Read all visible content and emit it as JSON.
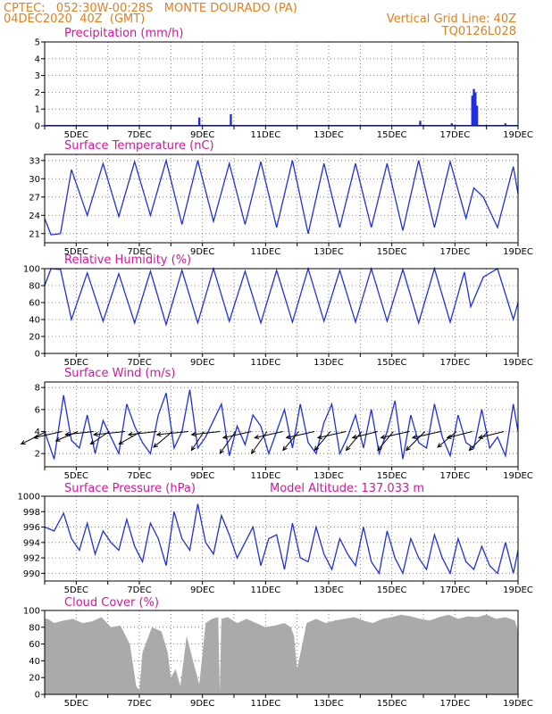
{
  "header": {
    "line1_left": "CPTEC:   052:30W-00:28S   MONTE DOURADO (PA)",
    "line2_left": "04DEC2020  40Z  (GMT)",
    "line2_right": "Vertical Grid Line: 40Z",
    "line3_right": "TQ0126L028"
  },
  "x_axis": {
    "tick_labels": [
      "5DEC",
      "7DEC",
      "9DEC",
      "11DEC",
      "13DEC",
      "15DEC",
      "17DEC",
      "19DEC"
    ]
  },
  "colors": {
    "header": "#e08020",
    "titles": "#d0189a",
    "series_line": "#2030e0",
    "wind_arrows": "#000000",
    "cloud_fill": "#aaaaaa",
    "grid": "#666666"
  },
  "panels": {
    "precip": {
      "title": "Precipitation (mm/h)",
      "yticks": [
        "0",
        "1",
        "2",
        "3",
        "4",
        "5"
      ]
    },
    "temp": {
      "title": "Surface Temperature (nC)",
      "yticks": [
        "21",
        "24",
        "27",
        "30",
        "33"
      ]
    },
    "rh": {
      "title": "Relative Humidity (%)",
      "yticks": [
        "0",
        "20",
        "40",
        "60",
        "80",
        "100"
      ]
    },
    "wind": {
      "title": "Surface Wind (m/s)",
      "yticks": [
        "2",
        "4",
        "6",
        "8"
      ]
    },
    "pressure": {
      "title": "Surface Pressure (hPa)",
      "extra": "Model Altitude: 137.033 m",
      "yticks": [
        "990",
        "992",
        "994",
        "996",
        "998",
        "1000"
      ]
    },
    "cloud": {
      "title": "Cloud Cover (%)",
      "yticks": [
        "0",
        "20",
        "40",
        "60",
        "80",
        "100"
      ]
    }
  },
  "chart_data": [
    {
      "type": "bar",
      "title": "Precipitation (mm/h)",
      "ylim": [
        0,
        5
      ],
      "xrange_days": [
        4.0,
        19.0
      ],
      "x": [
        6.0,
        8.9,
        9.9,
        15.9,
        16.9,
        17.55,
        17.6,
        17.65,
        17.7,
        18.6
      ],
      "values": [
        0.05,
        0.5,
        0.7,
        0.3,
        0.15,
        1.8,
        2.2,
        2.0,
        1.2,
        0.15
      ]
    },
    {
      "type": "line",
      "title": "Surface Temperature (nC)",
      "ylim": [
        19.5,
        34
      ],
      "xrange_days": [
        4.0,
        19.0
      ],
      "x": [
        4.0,
        4.2,
        4.5,
        4.85,
        5.35,
        5.85,
        6.35,
        6.85,
        7.35,
        7.85,
        8.35,
        8.85,
        9.35,
        9.85,
        10.35,
        10.85,
        11.35,
        11.85,
        12.35,
        12.85,
        13.35,
        13.85,
        14.35,
        14.85,
        15.35,
        15.85,
        16.35,
        16.85,
        17.35,
        17.6,
        17.9,
        18.35,
        18.85,
        19.0
      ],
      "y": [
        23.5,
        20.8,
        21.0,
        31.5,
        24.0,
        32.5,
        23.8,
        32.8,
        24.0,
        33.0,
        22.5,
        33.0,
        23.0,
        32.5,
        22.5,
        32.8,
        22.0,
        33.0,
        21.0,
        32.5,
        22.0,
        32.5,
        22.0,
        32.5,
        21.5,
        33.0,
        22.0,
        32.8,
        23.5,
        28.5,
        27.0,
        22.0,
        32.0,
        27.5
      ]
    },
    {
      "type": "line",
      "title": "Relative Humidity (%)",
      "ylim": [
        0,
        100
      ],
      "xrange_days": [
        4.0,
        19.0
      ],
      "x": [
        4.0,
        4.2,
        4.5,
        4.85,
        5.35,
        5.85,
        6.35,
        6.85,
        7.35,
        7.85,
        8.35,
        8.85,
        9.35,
        9.85,
        10.35,
        10.85,
        11.35,
        11.85,
        12.35,
        12.85,
        13.35,
        13.85,
        14.35,
        14.85,
        15.35,
        15.85,
        16.35,
        16.85,
        17.3,
        17.5,
        17.9,
        18.35,
        18.85,
        19.0
      ],
      "y": [
        80,
        100,
        99,
        40,
        95,
        38,
        94,
        36,
        97,
        34,
        98,
        36,
        100,
        38,
        97,
        36,
        98,
        37,
        100,
        38,
        98,
        37,
        100,
        38,
        99,
        36,
        100,
        37,
        96,
        55,
        90,
        100,
        40,
        60
      ]
    },
    {
      "type": "line",
      "title": "Surface Wind (m/s)",
      "ylim": [
        0.8,
        8.5
      ],
      "xrange_days": [
        4.0,
        19.0
      ],
      "x": [
        4.0,
        4.3,
        4.6,
        4.85,
        5.1,
        5.35,
        5.6,
        5.85,
        6.1,
        6.35,
        6.6,
        6.85,
        7.1,
        7.35,
        7.6,
        7.85,
        8.1,
        8.35,
        8.6,
        8.85,
        9.1,
        9.35,
        9.6,
        9.85,
        10.1,
        10.35,
        10.6,
        10.85,
        11.1,
        11.35,
        11.6,
        11.85,
        12.1,
        12.35,
        12.6,
        12.85,
        13.1,
        13.35,
        13.6,
        13.85,
        14.1,
        14.35,
        14.6,
        14.85,
        15.1,
        15.35,
        15.6,
        15.85,
        16.1,
        16.35,
        16.6,
        16.85,
        17.1,
        17.35,
        17.6,
        17.85,
        18.1,
        18.35,
        18.6,
        18.85,
        19.0
      ],
      "y": [
        4.0,
        1.5,
        7.3,
        3.2,
        2.5,
        5.5,
        2.0,
        5.0,
        3.5,
        2.0,
        6.5,
        4.5,
        3.0,
        2.0,
        5.5,
        7.5,
        2.5,
        4.0,
        7.8,
        2.5,
        3.5,
        5.0,
        6.5,
        1.8,
        4.5,
        2.8,
        5.5,
        4.5,
        2.0,
        4.0,
        6.0,
        2.5,
        6.5,
        3.0,
        2.0,
        4.8,
        6.5,
        2.0,
        3.5,
        5.5,
        2.5,
        6.0,
        2.0,
        4.0,
        6.8,
        1.5,
        5.5,
        3.0,
        2.5,
        6.5,
        3.5,
        1.8,
        5.5,
        3.0,
        2.5,
        6.0,
        2.5,
        3.5,
        1.8,
        6.5,
        4.0
      ]
    },
    {
      "type": "line",
      "title": "Surface Pressure (hPa)",
      "ylim": [
        989,
        1000
      ],
      "xrange_days": [
        4.0,
        19.0
      ],
      "x": [
        4.0,
        4.3,
        4.6,
        4.85,
        5.1,
        5.35,
        5.6,
        5.85,
        6.1,
        6.35,
        6.6,
        6.85,
        7.1,
        7.35,
        7.6,
        7.85,
        8.1,
        8.35,
        8.6,
        8.85,
        9.1,
        9.35,
        9.6,
        9.85,
        10.1,
        10.35,
        10.6,
        10.85,
        11.1,
        11.35,
        11.6,
        11.85,
        12.1,
        12.35,
        12.6,
        12.85,
        13.1,
        13.35,
        13.6,
        13.85,
        14.1,
        14.35,
        14.6,
        14.85,
        15.1,
        15.35,
        15.6,
        15.85,
        16.1,
        16.35,
        16.6,
        16.85,
        17.1,
        17.35,
        17.6,
        17.85,
        18.1,
        18.35,
        18.6,
        18.85,
        19.0
      ],
      "y": [
        996,
        995.5,
        997.8,
        994.5,
        993.0,
        996.5,
        992.5,
        995.5,
        994.0,
        993.0,
        997.0,
        993.5,
        991.5,
        996.5,
        994.5,
        991.0,
        998.0,
        994.5,
        993.0,
        999.0,
        994.0,
        992.5,
        997.5,
        995.0,
        992.0,
        994.0,
        996.0,
        991.0,
        994.5,
        995.0,
        990.5,
        996.5,
        992.0,
        991.5,
        996.0,
        992.5,
        990.5,
        994.5,
        992.5,
        991.0,
        996.0,
        991.5,
        990.0,
        995.5,
        992.0,
        990.0,
        994.5,
        992.0,
        990.5,
        995.0,
        992.0,
        990.0,
        994.5,
        991.5,
        990.5,
        993.5,
        991.0,
        990.0,
        994.0,
        990.0,
        993.0
      ]
    },
    {
      "type": "area",
      "title": "Cloud Cover (%)",
      "ylim": [
        0,
        100
      ],
      "xrange_days": [
        4.0,
        19.0
      ],
      "x": [
        4.0,
        4.1,
        4.3,
        4.6,
        4.9,
        5.2,
        5.5,
        5.8,
        6.1,
        6.4,
        6.7,
        6.9,
        7.0,
        7.1,
        7.4,
        7.7,
        7.9,
        8.0,
        8.15,
        8.3,
        8.5,
        8.7,
        8.9,
        9.1,
        9.3,
        9.5,
        9.55,
        9.6,
        9.8,
        10.1,
        10.4,
        10.7,
        11.0,
        11.3,
        11.6,
        11.8,
        11.9,
        12.0,
        12.3,
        12.6,
        12.9,
        13.2,
        13.5,
        13.8,
        14.1,
        14.4,
        14.7,
        15.0,
        15.3,
        15.6,
        15.9,
        16.2,
        16.5,
        16.8,
        17.1,
        17.4,
        17.7,
        18.0,
        18.3,
        18.6,
        18.9,
        19.0
      ],
      "y": [
        90,
        90,
        85,
        88,
        90,
        85,
        87,
        92,
        80,
        82,
        60,
        10,
        5,
        50,
        80,
        75,
        50,
        20,
        30,
        10,
        70,
        40,
        12,
        85,
        90,
        92,
        2,
        90,
        92,
        85,
        90,
        85,
        80,
        82,
        85,
        80,
        70,
        30,
        85,
        90,
        85,
        88,
        90,
        92,
        88,
        85,
        90,
        92,
        95,
        93,
        90,
        88,
        92,
        95,
        90,
        93,
        92,
        95,
        90,
        92,
        88,
        75
      ]
    },
    {
      "type": "scatter",
      "title": "Surface Wind (m/s) vectors",
      "xrange_days": [
        4.0,
        19.0
      ],
      "x": [
        4.05,
        4.55,
        5.05,
        5.55,
        6.05,
        6.55,
        7.05,
        7.55,
        8.05,
        8.55,
        9.05,
        9.55,
        10.05,
        10.55,
        11.05,
        11.55,
        12.05,
        12.55,
        13.05,
        13.55,
        14.05,
        14.55,
        15.05,
        15.55,
        16.05,
        16.55,
        17.05,
        17.55,
        18.05,
        18.55
      ],
      "u": [
        -4.0,
        -4.5,
        -3.5,
        -4.5,
        -3.0,
        -5.0,
        -3.5,
        -4.5,
        -3.0,
        -5.0,
        -2.0,
        -4.5,
        -2.5,
        -4.5,
        -2.5,
        -4.5,
        -2.5,
        -4.5,
        -2.5,
        -4.5,
        -2.5,
        -4.0,
        -2.5,
        -4.5,
        -3.0,
        -4.5,
        -3.0,
        -4.0,
        -3.0,
        -4.0
      ],
      "v": [
        -2.0,
        -1.0,
        -1.5,
        -0.5,
        -2.0,
        -0.5,
        -2.0,
        -0.5,
        -2.5,
        -0.5,
        -3.0,
        -0.5,
        -3.5,
        -1.0,
        -3.5,
        -1.0,
        -3.0,
        -1.0,
        -3.0,
        -1.0,
        -3.0,
        -1.0,
        -3.0,
        -1.0,
        -3.0,
        -1.0,
        -2.5,
        -1.0,
        -3.0,
        -1.0
      ]
    }
  ]
}
